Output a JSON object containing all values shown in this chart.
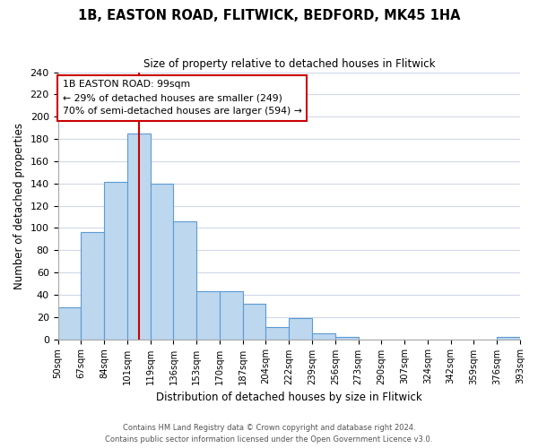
{
  "title": "1B, EASTON ROAD, FLITWICK, BEDFORD, MK45 1HA",
  "subtitle": "Size of property relative to detached houses in Flitwick",
  "xlabel": "Distribution of detached houses by size in Flitwick",
  "ylabel": "Number of detached properties",
  "bar_values": [
    29,
    96,
    141,
    185,
    140,
    106,
    43,
    43,
    32,
    11,
    19,
    5,
    2,
    0,
    0,
    0,
    0,
    0,
    0,
    2
  ],
  "bin_labels": [
    "50sqm",
    "67sqm",
    "84sqm",
    "101sqm",
    "119sqm",
    "136sqm",
    "153sqm",
    "170sqm",
    "187sqm",
    "204sqm",
    "222sqm",
    "239sqm",
    "256sqm",
    "273sqm",
    "290sqm",
    "307sqm",
    "324sqm",
    "342sqm",
    "359sqm",
    "376sqm",
    "393sqm"
  ],
  "bar_color": "#bdd7ee",
  "bar_edge_color": "#5b9bd5",
  "vline_x_index": 3,
  "vline_color": "#cc0000",
  "annotation_text": "1B EASTON ROAD: 99sqm\n← 29% of detached houses are smaller (249)\n70% of semi-detached houses are larger (594) →",
  "annotation_box_color": "#ffffff",
  "annotation_box_edge": "#cc0000",
  "ylim": [
    0,
    240
  ],
  "yticks": [
    0,
    20,
    40,
    60,
    80,
    100,
    120,
    140,
    160,
    180,
    200,
    220,
    240
  ],
  "footer_line1": "Contains HM Land Registry data © Crown copyright and database right 2024.",
  "footer_line2": "Contains public sector information licensed under the Open Government Licence v3.0.",
  "bg_color": "#ffffff",
  "grid_color": "#d0d8e8"
}
